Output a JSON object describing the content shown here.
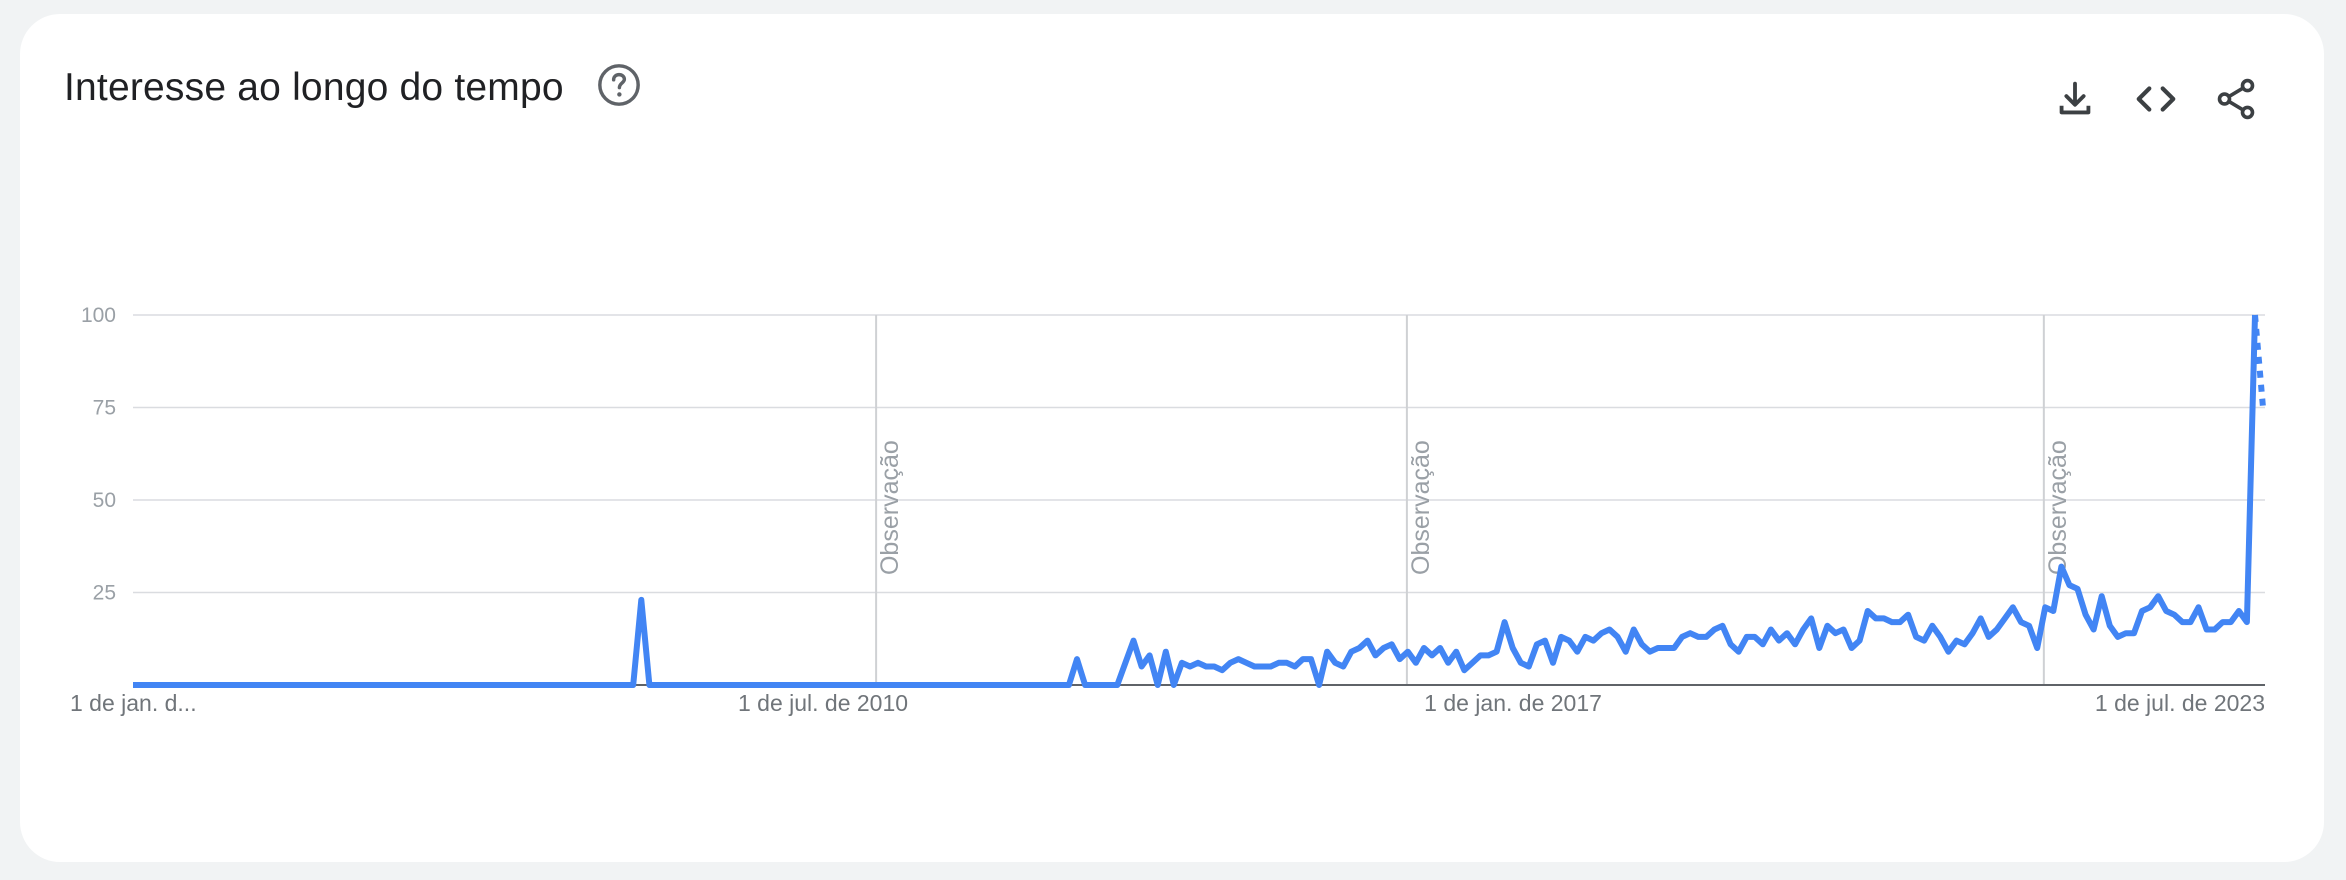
{
  "header": {
    "title": "Interesse ao longo do tempo",
    "help_icon": "help-circle-icon",
    "actions": [
      {
        "name": "download-icon"
      },
      {
        "name": "embed-code-icon"
      },
      {
        "name": "share-icon"
      }
    ]
  },
  "colors": {
    "line": "#4285f4",
    "grid": "#dadce0",
    "axis": "#5f6368",
    "text": "#202124",
    "tick": "#9aa0a6"
  },
  "chart_data": {
    "type": "line",
    "title": "Interesse ao longo do tempo",
    "xlabel": "",
    "ylabel": "",
    "ylim": [
      0,
      100
    ],
    "yticks": [
      25,
      50,
      75,
      100
    ],
    "x_start": "2004-01",
    "x_end": "2024-02",
    "xticks": [
      {
        "date": "2004-01",
        "label": "1 de jan. d..."
      },
      {
        "date": "2010-07",
        "label": "1 de jul. de 2010"
      },
      {
        "date": "2017-01",
        "label": "1 de jan. de 2017"
      },
      {
        "date": "2023-07",
        "label": "1 de jul. de 2023"
      }
    ],
    "annotations": [
      {
        "date": "2011-01",
        "label": "Observação"
      },
      {
        "date": "2016-01",
        "label": "Observação"
      },
      {
        "date": "2022-01",
        "label": "Observação"
      }
    ],
    "grid": true,
    "legend": "none",
    "series": [
      {
        "values": [
          0,
          0,
          0,
          0,
          0,
          0,
          0,
          0,
          0,
          0,
          0,
          0,
          0,
          0,
          0,
          0,
          0,
          0,
          0,
          0,
          0,
          0,
          0,
          0,
          0,
          0,
          0,
          0,
          0,
          0,
          0,
          0,
          0,
          0,
          0,
          0,
          0,
          0,
          0,
          0,
          0,
          0,
          0,
          0,
          0,
          0,
          0,
          0,
          0,
          0,
          0,
          0,
          0,
          0,
          0,
          0,
          0,
          0,
          0,
          0,
          0,
          0,
          0,
          23,
          0,
          0,
          0,
          0,
          0,
          0,
          0,
          0,
          0,
          0,
          0,
          0,
          0,
          0,
          0,
          0,
          0,
          0,
          0,
          0,
          0,
          0,
          0,
          0,
          0,
          0,
          0,
          0,
          0,
          0,
          0,
          0,
          0,
          0,
          0,
          0,
          0,
          0,
          0,
          0,
          0,
          0,
          0,
          0,
          0,
          0,
          0,
          0,
          0,
          0,
          0,
          0,
          0,
          7,
          0,
          0,
          0,
          0,
          0,
          6,
          12,
          5,
          8,
          0,
          9,
          0,
          6,
          5,
          6,
          5,
          5,
          4,
          6,
          7,
          6,
          5,
          5,
          5,
          6,
          6,
          5,
          7,
          7,
          0,
          9,
          6,
          5,
          9,
          10,
          12,
          8,
          10,
          11,
          7,
          9,
          6,
          10,
          8,
          10,
          6,
          9,
          4,
          6,
          8,
          8,
          9,
          17,
          10,
          6,
          5,
          11,
          12,
          6,
          13,
          12,
          9,
          13,
          12,
          14,
          15,
          13,
          9,
          15,
          11,
          9,
          10,
          10,
          10,
          13,
          14,
          13,
          13,
          15,
          16,
          11,
          9,
          13,
          13,
          11,
          15,
          12,
          14,
          11,
          15,
          18,
          10,
          16,
          14,
          15,
          10,
          12,
          20,
          18,
          18,
          17,
          17,
          19,
          13,
          12,
          16,
          13,
          9,
          12,
          11,
          14,
          18,
          13,
          15,
          18,
          21,
          17,
          16,
          10,
          21,
          20,
          32,
          27,
          26,
          19,
          15,
          24,
          16,
          13,
          14,
          14,
          20,
          21,
          24,
          20,
          19,
          17,
          17,
          21,
          15,
          15,
          17,
          17,
          20,
          17,
          100
        ],
        "partial": [
          100,
          75
        ]
      }
    ]
  }
}
